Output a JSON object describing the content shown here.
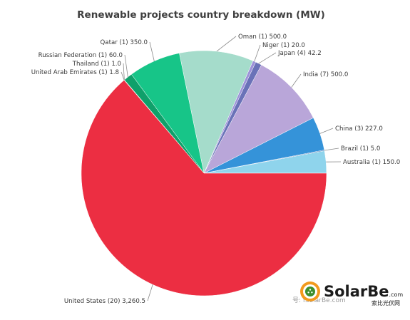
{
  "chart_data": {
    "type": "pie",
    "title": "Renewable projects country breakdown (MW)",
    "unit": "MW",
    "start_angle_deg": 90,
    "direction": "clockwise",
    "slices": [
      {
        "label": "Australia (1) 150.0",
        "country": "Australia",
        "projects": 1,
        "value": 150.0,
        "color": "#8fd4ec"
      },
      {
        "label": "Brazil (1) 5.0",
        "country": "Brazil",
        "projects": 1,
        "value": 5.0,
        "color": "#2c5ea6"
      },
      {
        "label": "China (3) 227.0",
        "country": "China",
        "projects": 3,
        "value": 227.0,
        "color": "#3593d9"
      },
      {
        "label": "India (7) 500.0",
        "country": "India",
        "projects": 7,
        "value": 500.0,
        "color": "#b9a6d9"
      },
      {
        "label": "Japan (4) 42.2",
        "country": "Japan",
        "projects": 4,
        "value": 42.2,
        "color": "#6a72b8"
      },
      {
        "label": "Niger (1) 20.0",
        "country": "Niger",
        "projects": 1,
        "value": 20.0,
        "color": "#9c92d8"
      },
      {
        "label": "Oman (1) 500.0",
        "country": "Oman",
        "projects": 1,
        "value": 500.0,
        "color": "#a5dccb"
      },
      {
        "label": "Qatar (1) 350.0",
        "country": "Qatar",
        "projects": 1,
        "value": 350.0,
        "color": "#17c588"
      },
      {
        "label": "Russian Federation (1) 60.0",
        "country": "Russian Federation",
        "projects": 1,
        "value": 60.0,
        "color": "#0fa06a"
      },
      {
        "label": "Thailand (1) 1.0",
        "country": "Thailand",
        "projects": 1,
        "value": 1.0,
        "color": "#228a60"
      },
      {
        "label": "United Arab Emirates (1) 1.8",
        "country": "United Arab Emirates",
        "projects": 1,
        "value": 1.8,
        "color": "#1d6e4d"
      },
      {
        "label": "United States (20) 3,260.5",
        "country": "United States",
        "projects": 20,
        "value": 3260.5,
        "color": "#ec2e42"
      }
    ]
  },
  "branding": {
    "logo_text_main": "SolarBe",
    "logo_text_domain": ".com",
    "logo_text_sub": "索比光伏网",
    "watermark_text": "号: fSolarBe.com"
  },
  "colors": {
    "title": "#3f3f3f",
    "label": "#3a3a3a",
    "leader": "#8a8a8a",
    "logo_green": "#3d8f2f",
    "logo_orange": "#f29a1e"
  }
}
